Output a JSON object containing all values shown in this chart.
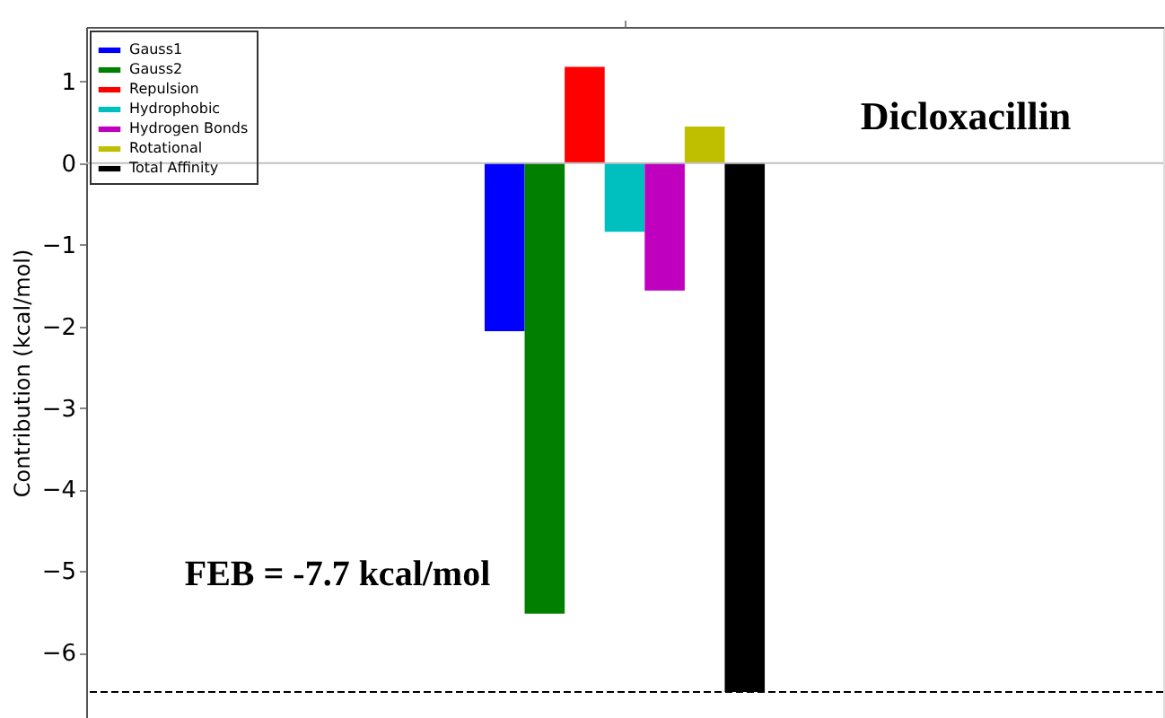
{
  "chart_data": {
    "type": "bar",
    "ylabel": "Contribution (kcal/mol)",
    "categories": [
      null
    ],
    "series": [
      {
        "name": "Gauss1",
        "color": "#0000ff",
        "values": [
          -2.06
        ]
      },
      {
        "name": "Gauss2",
        "color": "#007f00",
        "values": [
          -5.52
        ]
      },
      {
        "name": "Repulsion",
        "color": "#ff0000",
        "values": [
          1.18
        ]
      },
      {
        "name": "Hydrophobic",
        "color": "#00bfbf",
        "values": [
          -0.84
        ]
      },
      {
        "name": "Hydrogen Bonds",
        "color": "#bf00bf",
        "values": [
          -1.56
        ]
      },
      {
        "name": "Rotational",
        "color": "#bfbf00",
        "values": [
          0.45
        ]
      },
      {
        "name": "Total Affinity",
        "color": "#000000",
        "values": [
          -6.48
        ]
      }
    ],
    "ylim": [
      -6.8,
      1.67
    ],
    "yticks": [
      -6,
      -5,
      -4,
      -3,
      -2,
      -1,
      0,
      1
    ],
    "tick_labels": "y",
    "grid": false,
    "legend": "top left",
    "ref_lines": [
      {
        "axis": "y",
        "value": 0,
        "color": "#c0c0c0",
        "line_style": "solid"
      },
      {
        "axis": "y",
        "value": -6.48,
        "color": "#000000",
        "line_style": "dashed"
      }
    ],
    "annotations": [
      "Dicloxacillin",
      "FEB = -7.7 kcal/mol"
    ]
  }
}
